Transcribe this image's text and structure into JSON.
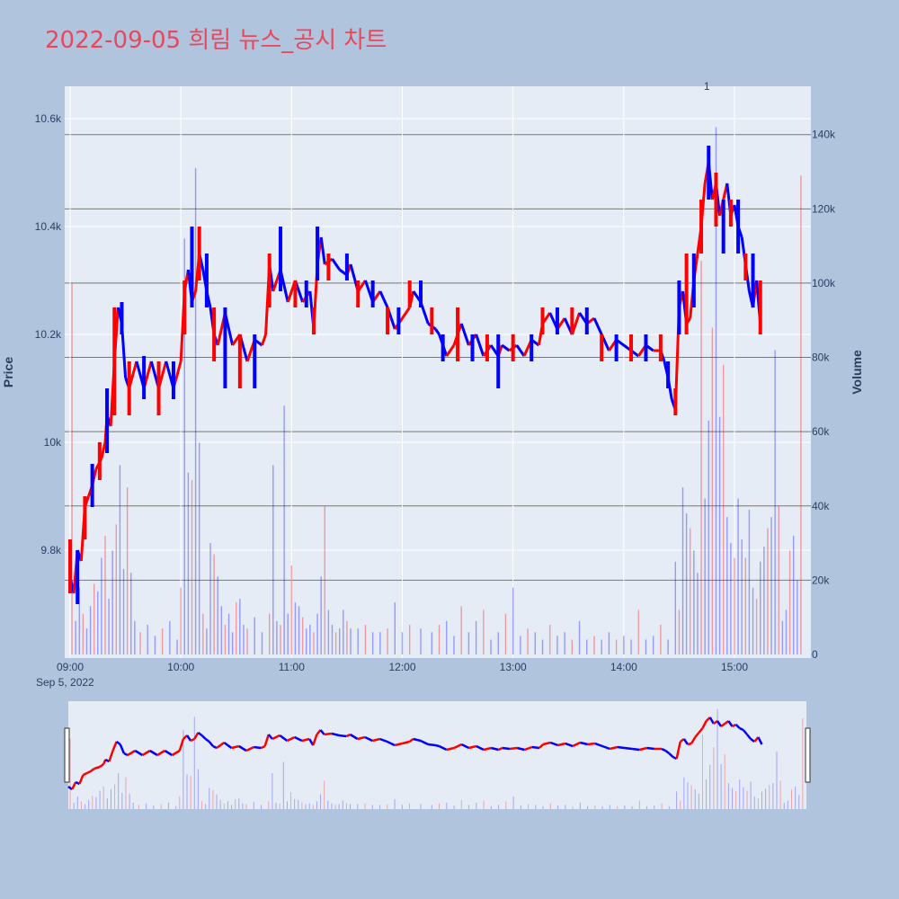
{
  "title": "2022-09-05 희림 뉴스_공시 차트",
  "colors": {
    "background": "#b0c4de",
    "plot_bg": "#e5ecf6",
    "up": "#ff0000",
    "down": "#0000ff",
    "title": "#e8485c",
    "hline": "#777777"
  },
  "chart_data": {
    "type": "candlestick",
    "title": "2022-09-05 희림 뉴스_공시 차트",
    "ylabel": "Price",
    "y2label": "Volume",
    "ylim": [
      9600,
      10660
    ],
    "y2lim": [
      0,
      153000
    ],
    "y_ticks": [
      9800,
      10000,
      10200,
      10400,
      10600
    ],
    "y_tick_labels": [
      "9.8k",
      "10k",
      "10.2k",
      "10.4k",
      "10.6k"
    ],
    "y2_ticks": [
      0,
      20000,
      40000,
      60000,
      80000,
      100000,
      120000,
      140000
    ],
    "y2_tick_labels": [
      "0",
      "20k",
      "40k",
      "60k",
      "80k",
      "100k",
      "120k",
      "140k"
    ],
    "x_ticks": [
      "09:00",
      "10:00",
      "11:00",
      "12:00",
      "13:00",
      "14:00",
      "15:00"
    ],
    "x_sublabel": "Sep 5, 2022",
    "x_range_minutes": [
      0,
      398
    ],
    "annotation": "1",
    "annotation_minute": 345,
    "volume_gridlines": [
      0,
      20000,
      40000,
      60000,
      80000,
      100000,
      120000,
      140000
    ],
    "price_path": [
      [
        0,
        9750
      ],
      [
        2,
        9720
      ],
      [
        4,
        9800
      ],
      [
        6,
        9780
      ],
      [
        8,
        9880
      ],
      [
        10,
        9900
      ],
      [
        12,
        9920
      ],
      [
        14,
        9950
      ],
      [
        17,
        9970
      ],
      [
        19,
        10000
      ],
      [
        20,
        10050
      ],
      [
        22,
        10030
      ],
      [
        24,
        10150
      ],
      [
        26,
        10250
      ],
      [
        28,
        10220
      ],
      [
        30,
        10120
      ],
      [
        32,
        10100
      ],
      [
        36,
        10150
      ],
      [
        40,
        10100
      ],
      [
        44,
        10150
      ],
      [
        48,
        10100
      ],
      [
        52,
        10150
      ],
      [
        56,
        10100
      ],
      [
        60,
        10150
      ],
      [
        62,
        10280
      ],
      [
        64,
        10320
      ],
      [
        66,
        10260
      ],
      [
        68,
        10280
      ],
      [
        70,
        10350
      ],
      [
        72,
        10320
      ],
      [
        74,
        10280
      ],
      [
        76,
        10250
      ],
      [
        78,
        10200
      ],
      [
        80,
        10180
      ],
      [
        84,
        10240
      ],
      [
        88,
        10180
      ],
      [
        92,
        10200
      ],
      [
        96,
        10150
      ],
      [
        100,
        10190
      ],
      [
        104,
        10180
      ],
      [
        106,
        10200
      ],
      [
        108,
        10330
      ],
      [
        110,
        10280
      ],
      [
        114,
        10320
      ],
      [
        118,
        10260
      ],
      [
        122,
        10300
      ],
      [
        126,
        10260
      ],
      [
        130,
        10280
      ],
      [
        132,
        10210
      ],
      [
        134,
        10330
      ],
      [
        136,
        10380
      ],
      [
        138,
        10330
      ],
      [
        142,
        10340
      ],
      [
        146,
        10320
      ],
      [
        150,
        10310
      ],
      [
        152,
        10330
      ],
      [
        156,
        10280
      ],
      [
        160,
        10300
      ],
      [
        164,
        10260
      ],
      [
        168,
        10280
      ],
      [
        172,
        10250
      ],
      [
        174,
        10230
      ],
      [
        176,
        10210
      ],
      [
        180,
        10230
      ],
      [
        184,
        10250
      ],
      [
        186,
        10280
      ],
      [
        190,
        10260
      ],
      [
        194,
        10220
      ],
      [
        198,
        10210
      ],
      [
        200,
        10200
      ],
      [
        204,
        10160
      ],
      [
        208,
        10180
      ],
      [
        212,
        10220
      ],
      [
        216,
        10180
      ],
      [
        220,
        10200
      ],
      [
        224,
        10160
      ],
      [
        228,
        10180
      ],
      [
        232,
        10160
      ],
      [
        234,
        10180
      ],
      [
        238,
        10170
      ],
      [
        242,
        10180
      ],
      [
        246,
        10160
      ],
      [
        250,
        10190
      ],
      [
        254,
        10180
      ],
      [
        256,
        10220
      ],
      [
        260,
        10240
      ],
      [
        264,
        10210
      ],
      [
        268,
        10230
      ],
      [
        272,
        10200
      ],
      [
        276,
        10240
      ],
      [
        280,
        10220
      ],
      [
        284,
        10230
      ],
      [
        288,
        10200
      ],
      [
        292,
        10170
      ],
      [
        296,
        10190
      ],
      [
        300,
        10180
      ],
      [
        304,
        10170
      ],
      [
        308,
        10160
      ],
      [
        312,
        10180
      ],
      [
        316,
        10170
      ],
      [
        320,
        10170
      ],
      [
        322,
        10150
      ],
      [
        324,
        10120
      ],
      [
        326,
        10080
      ],
      [
        328,
        10060
      ],
      [
        330,
        10250
      ],
      [
        332,
        10280
      ],
      [
        334,
        10220
      ],
      [
        336,
        10230
      ],
      [
        338,
        10300
      ],
      [
        340,
        10350
      ],
      [
        342,
        10400
      ],
      [
        344,
        10480
      ],
      [
        346,
        10520
      ],
      [
        348,
        10450
      ],
      [
        350,
        10480
      ],
      [
        352,
        10420
      ],
      [
        354,
        10450
      ],
      [
        356,
        10480
      ],
      [
        358,
        10420
      ],
      [
        360,
        10440
      ],
      [
        362,
        10400
      ],
      [
        364,
        10380
      ],
      [
        366,
        10330
      ],
      [
        368,
        10280
      ],
      [
        370,
        10250
      ],
      [
        372,
        10300
      ],
      [
        374,
        10220
      ]
    ],
    "range_candles": [
      [
        0,
        9720,
        9820
      ],
      [
        4,
        9700,
        9800
      ],
      [
        8,
        9820,
        9900
      ],
      [
        12,
        9880,
        9960
      ],
      [
        16,
        9930,
        10000
      ],
      [
        20,
        9980,
        10100
      ],
      [
        24,
        10050,
        10250
      ],
      [
        28,
        10200,
        10260
      ],
      [
        32,
        10050,
        10150
      ],
      [
        40,
        10080,
        10160
      ],
      [
        48,
        10050,
        10150
      ],
      [
        56,
        10080,
        10150
      ],
      [
        62,
        10200,
        10300
      ],
      [
        66,
        10250,
        10400
      ],
      [
        70,
        10300,
        10400
      ],
      [
        74,
        10250,
        10350
      ],
      [
        78,
        10150,
        10250
      ],
      [
        84,
        10100,
        10250
      ],
      [
        92,
        10100,
        10200
      ],
      [
        100,
        10100,
        10200
      ],
      [
        108,
        10250,
        10350
      ],
      [
        114,
        10280,
        10400
      ],
      [
        122,
        10250,
        10300
      ],
      [
        128,
        10250,
        10300
      ],
      [
        132,
        10200,
        10250
      ],
      [
        134,
        10300,
        10400
      ],
      [
        140,
        10300,
        10350
      ],
      [
        150,
        10300,
        10350
      ],
      [
        156,
        10250,
        10300
      ],
      [
        164,
        10250,
        10300
      ],
      [
        172,
        10200,
        10250
      ],
      [
        178,
        10200,
        10250
      ],
      [
        184,
        10250,
        10300
      ],
      [
        190,
        10250,
        10300
      ],
      [
        196,
        10200,
        10250
      ],
      [
        202,
        10150,
        10200
      ],
      [
        210,
        10150,
        10250
      ],
      [
        218,
        10150,
        10200
      ],
      [
        226,
        10150,
        10200
      ],
      [
        232,
        10100,
        10200
      ],
      [
        240,
        10150,
        10200
      ],
      [
        250,
        10150,
        10200
      ],
      [
        256,
        10200,
        10250
      ],
      [
        264,
        10200,
        10250
      ],
      [
        272,
        10200,
        10250
      ],
      [
        280,
        10200,
        10250
      ],
      [
        288,
        10150,
        10200
      ],
      [
        296,
        10150,
        10200
      ],
      [
        304,
        10150,
        10200
      ],
      [
        312,
        10150,
        10200
      ],
      [
        320,
        10150,
        10200
      ],
      [
        324,
        10100,
        10150
      ],
      [
        328,
        10050,
        10100
      ],
      [
        330,
        10200,
        10300
      ],
      [
        334,
        10200,
        10350
      ],
      [
        338,
        10250,
        10350
      ],
      [
        342,
        10350,
        10450
      ],
      [
        346,
        10450,
        10550
      ],
      [
        350,
        10400,
        10500
      ],
      [
        354,
        10350,
        10450
      ],
      [
        358,
        10400,
        10450
      ],
      [
        362,
        10350,
        10450
      ],
      [
        366,
        10300,
        10350
      ],
      [
        370,
        10250,
        10350
      ],
      [
        374,
        10200,
        10300
      ]
    ],
    "volume_spikes": [
      [
        1,
        100000
      ],
      [
        3,
        9000
      ],
      [
        5,
        18000
      ],
      [
        7,
        11000
      ],
      [
        9,
        7000
      ],
      [
        11,
        13000
      ],
      [
        13,
        19000
      ],
      [
        15,
        17000
      ],
      [
        17,
        26000
      ],
      [
        19,
        32000
      ],
      [
        21,
        15000
      ],
      [
        23,
        28000
      ],
      [
        25,
        35000
      ],
      [
        27,
        51000
      ],
      [
        29,
        23000
      ],
      [
        31,
        45000
      ],
      [
        33,
        22000
      ],
      [
        35,
        9000
      ],
      [
        38,
        6000
      ],
      [
        42,
        8000
      ],
      [
        46,
        5000
      ],
      [
        50,
        7000
      ],
      [
        54,
        9000
      ],
      [
        58,
        4000
      ],
      [
        60,
        18000
      ],
      [
        62,
        112000
      ],
      [
        64,
        49000
      ],
      [
        66,
        47000
      ],
      [
        68,
        131000
      ],
      [
        70,
        57000
      ],
      [
        72,
        11000
      ],
      [
        74,
        7000
      ],
      [
        76,
        30000
      ],
      [
        78,
        27000
      ],
      [
        80,
        21000
      ],
      [
        82,
        13000
      ],
      [
        84,
        8000
      ],
      [
        86,
        11000
      ],
      [
        88,
        6000
      ],
      [
        90,
        14000
      ],
      [
        92,
        15000
      ],
      [
        94,
        8000
      ],
      [
        96,
        7000
      ],
      [
        100,
        10000
      ],
      [
        104,
        6000
      ],
      [
        108,
        11000
      ],
      [
        110,
        51000
      ],
      [
        112,
        9000
      ],
      [
        114,
        8000
      ],
      [
        116,
        67000
      ],
      [
        118,
        11000
      ],
      [
        120,
        24000
      ],
      [
        122,
        14000
      ],
      [
        124,
        13000
      ],
      [
        126,
        10000
      ],
      [
        128,
        7000
      ],
      [
        130,
        8000
      ],
      [
        132,
        6000
      ],
      [
        134,
        11000
      ],
      [
        136,
        21000
      ],
      [
        138,
        40000
      ],
      [
        140,
        12000
      ],
      [
        142,
        8000
      ],
      [
        144,
        6000
      ],
      [
        146,
        7000
      ],
      [
        148,
        12000
      ],
      [
        150,
        9000
      ],
      [
        152,
        7000
      ],
      [
        156,
        7000
      ],
      [
        160,
        8000
      ],
      [
        164,
        6000
      ],
      [
        168,
        6000
      ],
      [
        172,
        7000
      ],
      [
        176,
        14000
      ],
      [
        180,
        6000
      ],
      [
        184,
        8000
      ],
      [
        190,
        7000
      ],
      [
        196,
        6000
      ],
      [
        200,
        8000
      ],
      [
        204,
        9000
      ],
      [
        208,
        5000
      ],
      [
        212,
        13000
      ],
      [
        216,
        6000
      ],
      [
        220,
        9000
      ],
      [
        224,
        12000
      ],
      [
        228,
        4000
      ],
      [
        232,
        6000
      ],
      [
        236,
        11000
      ],
      [
        240,
        18000
      ],
      [
        244,
        5000
      ],
      [
        248,
        7000
      ],
      [
        252,
        6000
      ],
      [
        256,
        4000
      ],
      [
        260,
        8000
      ],
      [
        264,
        5000
      ],
      [
        268,
        6000
      ],
      [
        272,
        4000
      ],
      [
        276,
        9000
      ],
      [
        280,
        4000
      ],
      [
        284,
        5000
      ],
      [
        288,
        4000
      ],
      [
        292,
        6000
      ],
      [
        296,
        4000
      ],
      [
        300,
        5000
      ],
      [
        304,
        4000
      ],
      [
        308,
        12000
      ],
      [
        312,
        4000
      ],
      [
        316,
        5000
      ],
      [
        320,
        8000
      ],
      [
        324,
        4000
      ],
      [
        328,
        25000
      ],
      [
        330,
        12000
      ],
      [
        332,
        45000
      ],
      [
        334,
        38000
      ],
      [
        336,
        34000
      ],
      [
        338,
        28000
      ],
      [
        340,
        22000
      ],
      [
        342,
        106000
      ],
      [
        344,
        42000
      ],
      [
        346,
        63000
      ],
      [
        348,
        88000
      ],
      [
        350,
        142000
      ],
      [
        352,
        64000
      ],
      [
        354,
        78000
      ],
      [
        356,
        37000
      ],
      [
        358,
        30000
      ],
      [
        360,
        26000
      ],
      [
        362,
        42000
      ],
      [
        364,
        31000
      ],
      [
        366,
        26000
      ],
      [
        368,
        39000
      ],
      [
        370,
        18000
      ],
      [
        372,
        15000
      ],
      [
        374,
        25000
      ],
      [
        376,
        29000
      ],
      [
        378,
        34000
      ],
      [
        380,
        37000
      ],
      [
        382,
        82000
      ],
      [
        384,
        40000
      ],
      [
        386,
        9000
      ],
      [
        388,
        12000
      ],
      [
        390,
        28000
      ],
      [
        392,
        32000
      ],
      [
        394,
        20000
      ],
      [
        396,
        129000
      ]
    ]
  }
}
